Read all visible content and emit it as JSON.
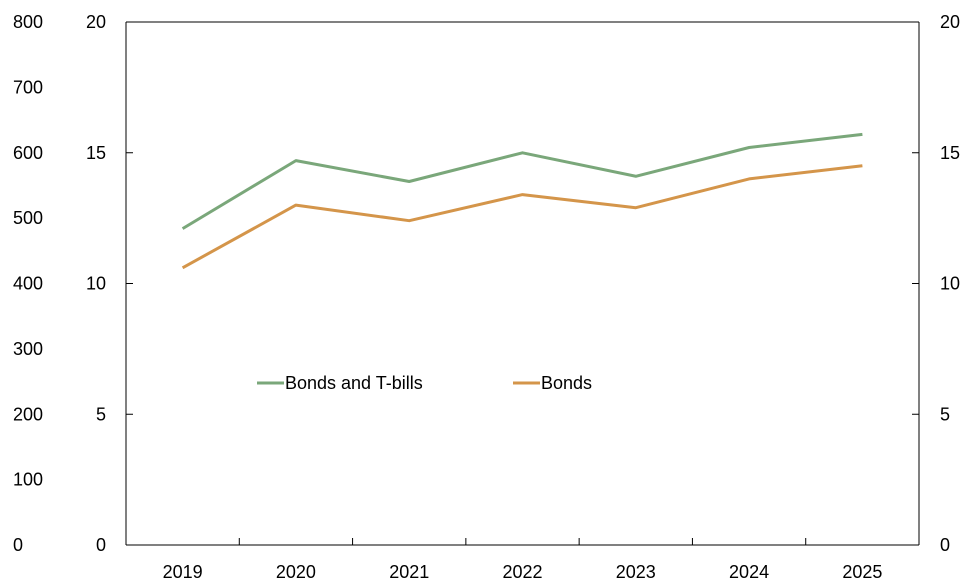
{
  "chart_data": {
    "type": "line",
    "categories": [
      "2019",
      "2020",
      "2021",
      "2022",
      "2023",
      "2024",
      "2025"
    ],
    "series": [
      {
        "name": "Bonds and T-bills",
        "color": "#7aa77a",
        "values": [
          12.1,
          14.7,
          13.9,
          15.0,
          14.1,
          15.2,
          15.7
        ]
      },
      {
        "name": "Bonds",
        "color": "#d4954a",
        "values": [
          10.6,
          13.0,
          12.4,
          13.4,
          12.9,
          14.0,
          14.5
        ]
      }
    ],
    "y_outer_ticks": [
      "800",
      "700",
      "600",
      "500",
      "400",
      "300",
      "200",
      "100",
      "0"
    ],
    "y_outer_range": [
      0,
      800
    ],
    "y_left_ticks": [
      "20",
      "15",
      "10",
      "5",
      "0"
    ],
    "y_right_ticks": [
      "20",
      "15",
      "10",
      "5",
      "0"
    ],
    "ylim": [
      0,
      20
    ],
    "grid": false,
    "legend_position": "center-left"
  }
}
